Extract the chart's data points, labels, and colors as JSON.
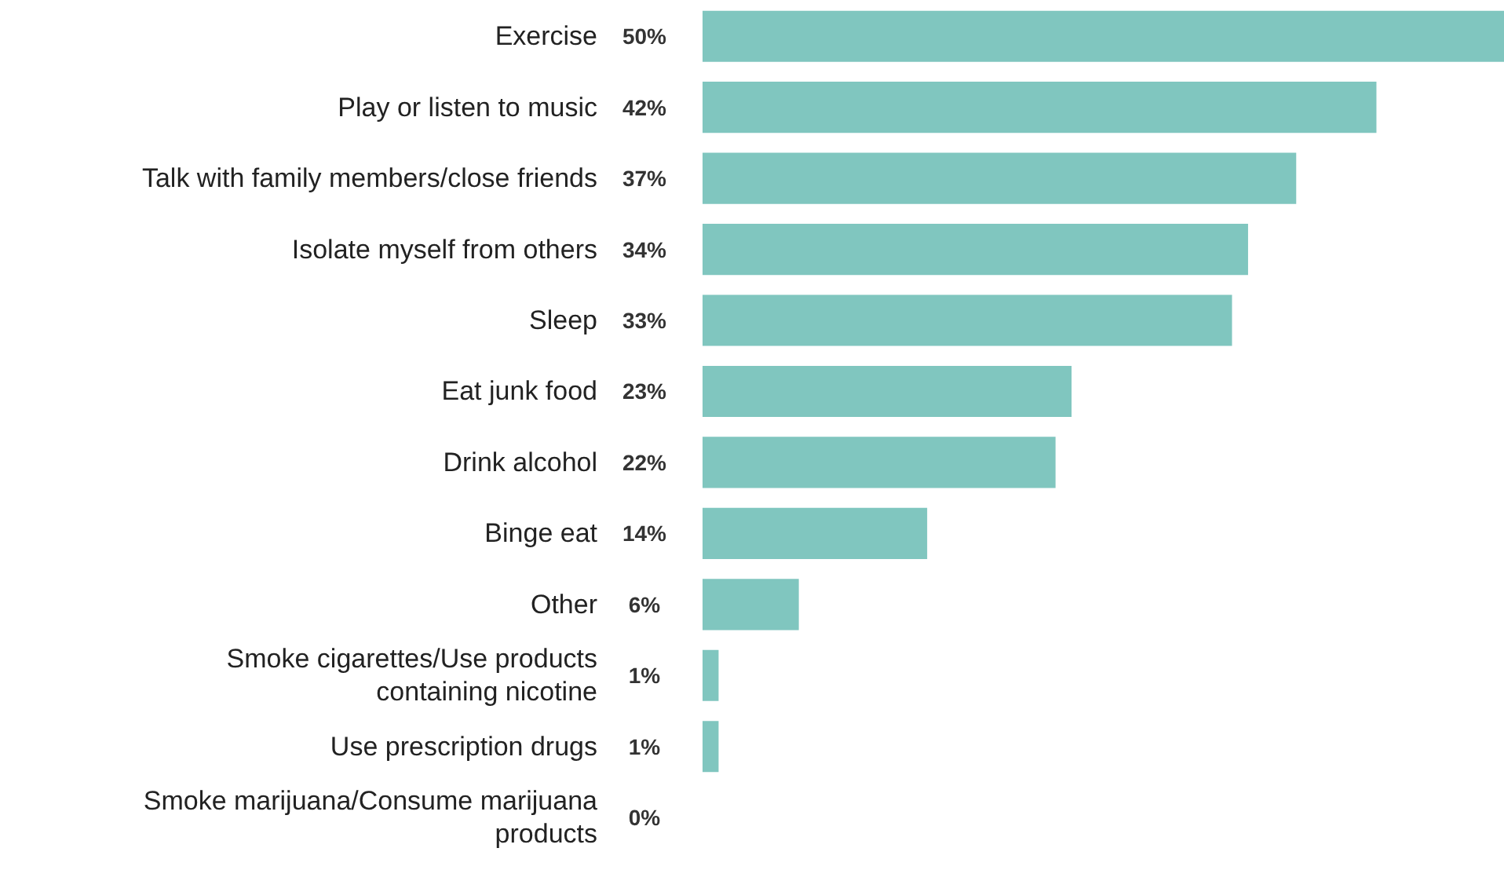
{
  "chart_data": {
    "type": "bar",
    "orientation": "horizontal",
    "color": "#80c6bf",
    "categories": [
      "Exercise",
      "Play or listen to music",
      "Talk with family members/close friends",
      "Isolate myself from others",
      "Sleep",
      "Eat junk food",
      "Drink alcohol",
      "Binge eat",
      "Other",
      "Smoke cigarettes/Use products\ncontaining nicotine",
      "Use prescription drugs",
      "Smoke marijuana/Consume marijuana\nproducts"
    ],
    "values": [
      50,
      42,
      37,
      34,
      33,
      23,
      22,
      14,
      6,
      1,
      1,
      0
    ],
    "value_labels": [
      "50%",
      "42%",
      "37%",
      "34%",
      "33%",
      "23%",
      "22%",
      "14%",
      "6%",
      "1%",
      "1%",
      "0%"
    ]
  }
}
